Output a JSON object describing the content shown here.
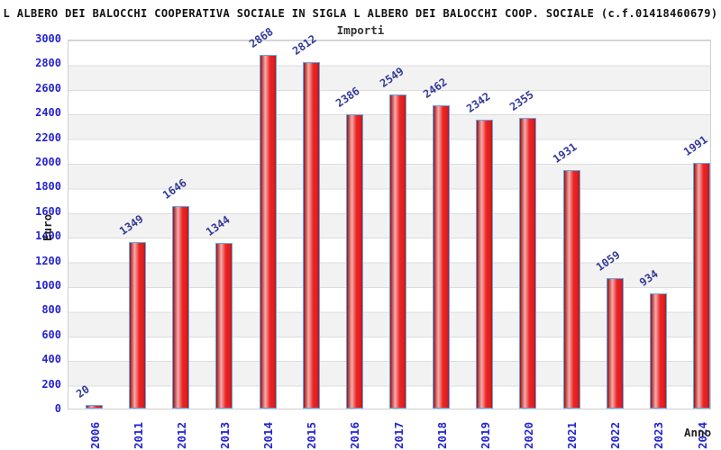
{
  "header": {
    "title": "L ALBERO DEI BALOCCHI COOPERATIVA SOCIALE IN SIGLA L ALBERO DEI BALOCCHI COOP. SOCIALE (c.f.01418460679)",
    "subtitle": "Importi"
  },
  "chart_data": {
    "type": "bar",
    "title": "L ALBERO DEI BALOCCHI COOPERATIVA SOCIALE IN SIGLA L ALBERO DEI BALOCCHI COOP. SOCIALE (c.f.01418460679)",
    "subtitle": "Importi",
    "xlabel": "Anno",
    "ylabel": "Euro",
    "categories": [
      "2006",
      "2011",
      "2012",
      "2013",
      "2014",
      "2015",
      "2016",
      "2017",
      "2018",
      "2019",
      "2020",
      "2021",
      "2022",
      "2023",
      "2024"
    ],
    "values": [
      20,
      1349,
      1646,
      1344,
      2868,
      2812,
      2386,
      2549,
      2462,
      2342,
      2355,
      1931,
      1059,
      934,
      1991
    ],
    "ylim": [
      0,
      3000
    ],
    "ytick_step": 200,
    "grid": true,
    "legend": "none",
    "style": {
      "tick_label_color": "#2323d2",
      "value_label_color": "#333a99",
      "axis_title_color": "#222222",
      "bar_border_color": "#61a6ea",
      "bar_gradient": [
        "#991111",
        "#f5adad",
        "#ec2222",
        "#e02020",
        "#bb1515"
      ],
      "stripe_color": "#f2f2f2",
      "gridline_color": "#dcdcdc",
      "plot_border_color": "#cfcfcf"
    }
  }
}
